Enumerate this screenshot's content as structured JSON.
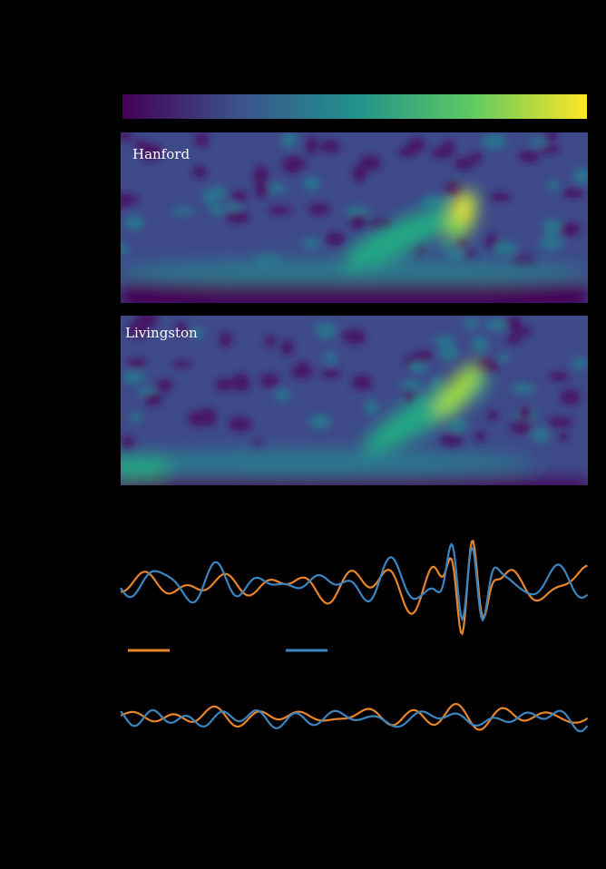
{
  "panels": [
    {
      "label": "Hanford"
    },
    {
      "label": "Livingston"
    }
  ]
}
